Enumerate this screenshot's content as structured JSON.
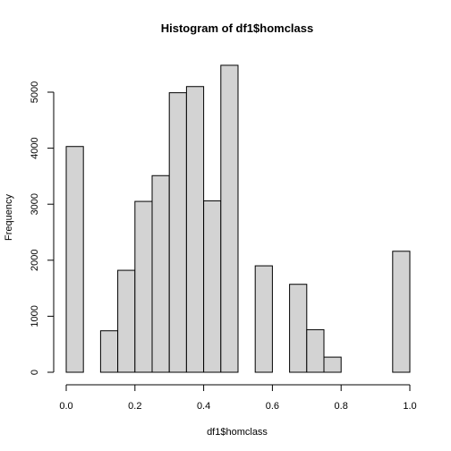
{
  "chart_data": {
    "type": "bar",
    "title": "Histogram of df1$homclass",
    "xlabel": "df1$homclass",
    "ylabel": "Frequency",
    "bin_width": 0.05,
    "bin_starts": [
      0.0,
      0.05,
      0.1,
      0.15,
      0.2,
      0.25,
      0.3,
      0.35,
      0.4,
      0.45,
      0.5,
      0.55,
      0.6,
      0.65,
      0.7,
      0.75,
      0.8,
      0.85,
      0.9,
      0.95
    ],
    "values": [
      4030,
      0,
      740,
      1820,
      3050,
      3510,
      4990,
      5100,
      3060,
      5480,
      0,
      1900,
      0,
      1570,
      760,
      270,
      0,
      0,
      0,
      2160
    ],
    "xlim": [
      0,
      1
    ],
    "ylim": [
      0,
      5500
    ],
    "x_ticks": [
      "0.0",
      "0.2",
      "0.4",
      "0.6",
      "0.8",
      "1.0"
    ],
    "y_ticks": [
      "0",
      "1000",
      "2000",
      "3000",
      "4000",
      "5000"
    ],
    "bar_fill": "#d3d3d3",
    "bar_stroke": "#000000",
    "grid": false,
    "legend": "none"
  }
}
